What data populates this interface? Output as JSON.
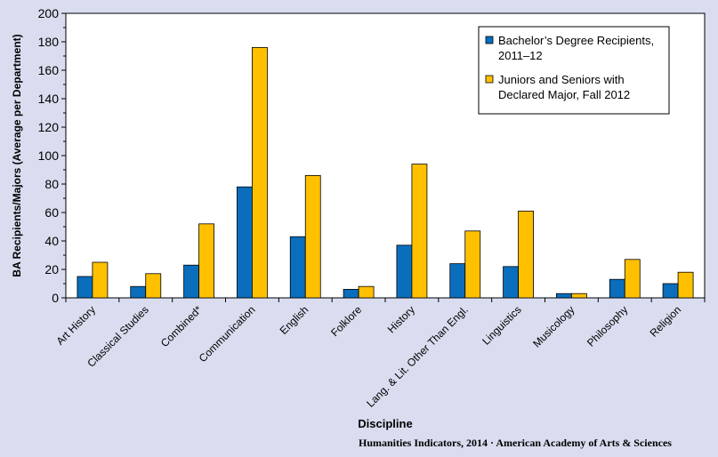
{
  "chart_data": {
    "type": "bar",
    "categories": [
      "Art History",
      "Classical Studies",
      "Combined*",
      "Communication",
      "English",
      "Folklore",
      "History",
      "Lang. & Lit. Other Than Engl.",
      "Linguistics",
      "Musicology",
      "Philosophy",
      "Religion"
    ],
    "series": [
      {
        "name": "Bachelor’s Degree Recipients, 2011–12",
        "name_lines": [
          "Bachelor’s Degree Recipients,",
          "2011–12"
        ],
        "color": "#0a6ebd",
        "values": [
          15,
          8,
          23,
          78,
          43,
          6,
          37,
          24,
          22,
          3,
          13,
          10
        ]
      },
      {
        "name": "Juniors and Seniors with Declared Major, Fall 2012",
        "name_lines": [
          "Juniors and Seniors with",
          "Declared Major, Fall 2012"
        ],
        "color": "#ffc000",
        "values": [
          25,
          17,
          52,
          176,
          86,
          8,
          94,
          47,
          61,
          3,
          27,
          18
        ]
      }
    ],
    "yticks": [
      0,
      20,
      40,
      60,
      80,
      100,
      120,
      140,
      160,
      180,
      200
    ],
    "ylim": [
      0,
      200
    ],
    "xlabel": "Discipline",
    "ylabel": "BA Recipients/Majors (Average per Department)",
    "legend_position": "top-right",
    "grid": false
  },
  "footer": "Humanities Indicators, 2014 · American Academy of Arts & Sciences",
  "colors": {
    "background": "#d9ddef",
    "plot_background": "#ffffff"
  }
}
